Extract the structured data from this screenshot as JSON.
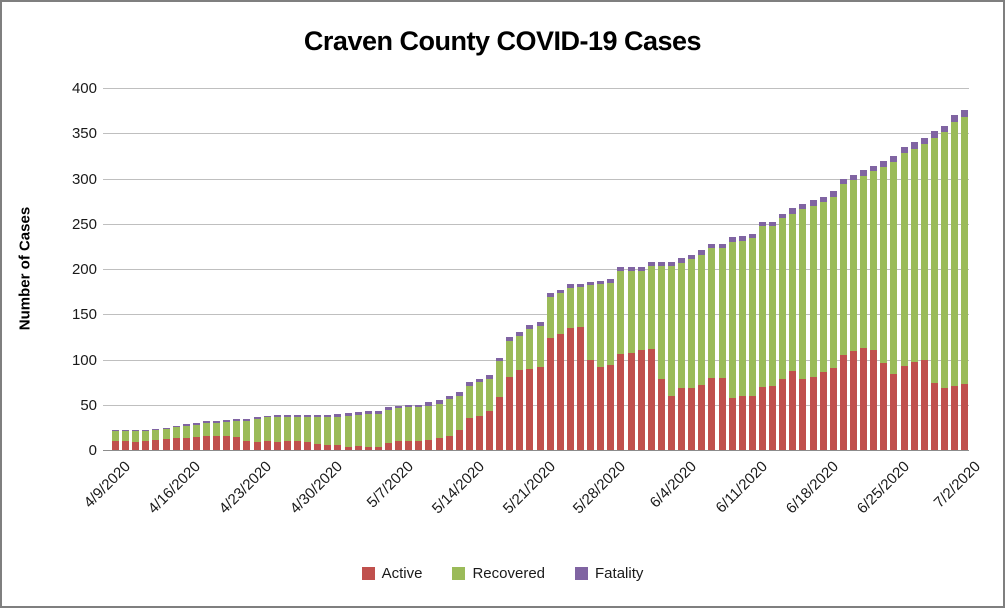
{
  "title": "Craven County COVID-19 Cases",
  "y_axis": {
    "label": "Number of Cases",
    "ticks": [
      0,
      50,
      100,
      150,
      200,
      250,
      300,
      350,
      400
    ],
    "min": 0,
    "max": 400
  },
  "x_axis": {
    "tick_labels": [
      "4/9/2020",
      "4/16/2020",
      "4/23/2020",
      "4/30/2020",
      "5/7/2020",
      "5/14/2020",
      "5/21/2020",
      "5/28/2020",
      "6/4/2020",
      "6/11/2020",
      "6/18/2020",
      "6/25/2020",
      "7/2/2020"
    ],
    "tick_every_n_bars": 7
  },
  "legend": {
    "items": [
      {
        "label": "Active",
        "color": "#c0504d"
      },
      {
        "label": "Recovered",
        "color": "#9bbb59"
      },
      {
        "label": "Fatality",
        "color": "#8064a2"
      }
    ],
    "position": "bottom"
  },
  "colors": {
    "active": "#c0504d",
    "recovered": "#9bbb59",
    "fatality": "#8064a2",
    "gridline": "#bfbfbf",
    "axis_line": "#8c8c8c",
    "text": "#1a1a1a",
    "frame_border": "#7f7f7f"
  },
  "chart_data": {
    "type": "bar",
    "stacked": true,
    "title": "Craven County COVID-19 Cases",
    "xlabel": "",
    "ylabel": "Number of Cases",
    "ylim": [
      0,
      400
    ],
    "grid": true,
    "legend_position": "bottom",
    "x": [
      "4/9/2020",
      "4/10/2020",
      "4/11/2020",
      "4/12/2020",
      "4/13/2020",
      "4/14/2020",
      "4/15/2020",
      "4/16/2020",
      "4/17/2020",
      "4/18/2020",
      "4/19/2020",
      "4/20/2020",
      "4/21/2020",
      "4/22/2020",
      "4/23/2020",
      "4/24/2020",
      "4/25/2020",
      "4/26/2020",
      "4/27/2020",
      "4/28/2020",
      "4/29/2020",
      "4/30/2020",
      "5/1/2020",
      "5/2/2020",
      "5/3/2020",
      "5/4/2020",
      "5/5/2020",
      "5/6/2020",
      "5/7/2020",
      "5/8/2020",
      "5/9/2020",
      "5/10/2020",
      "5/11/2020",
      "5/12/2020",
      "5/13/2020",
      "5/14/2020",
      "5/15/2020",
      "5/16/2020",
      "5/17/2020",
      "5/18/2020",
      "5/19/2020",
      "5/20/2020",
      "5/21/2020",
      "5/22/2020",
      "5/23/2020",
      "5/24/2020",
      "5/25/2020",
      "5/26/2020",
      "5/27/2020",
      "5/28/2020",
      "5/29/2020",
      "5/30/2020",
      "5/31/2020",
      "6/1/2020",
      "6/2/2020",
      "6/3/2020",
      "6/4/2020",
      "6/5/2020",
      "6/6/2020",
      "6/7/2020",
      "6/8/2020",
      "6/9/2020",
      "6/10/2020",
      "6/11/2020",
      "6/12/2020",
      "6/13/2020",
      "6/14/2020",
      "6/15/2020",
      "6/16/2020",
      "6/17/2020",
      "6/18/2020",
      "6/19/2020",
      "6/20/2020",
      "6/21/2020",
      "6/22/2020",
      "6/23/2020",
      "6/24/2020",
      "6/25/2020",
      "6/26/2020",
      "6/27/2020",
      "6/28/2020",
      "6/29/2020",
      "6/30/2020",
      "7/1/2020",
      "7/2/2020"
    ],
    "series": [
      {
        "name": "Active",
        "color": "#c0504d",
        "values": [
          10,
          10,
          9,
          10,
          11,
          12,
          13,
          13,
          14,
          15,
          15,
          15,
          14,
          10,
          9,
          10,
          9,
          10,
          10,
          9,
          7,
          6,
          5,
          3,
          4,
          3,
          3,
          8,
          10,
          10,
          10,
          11,
          13,
          16,
          22,
          35,
          38,
          43,
          59,
          81,
          88,
          90,
          92,
          124,
          128,
          135,
          136,
          99,
          92,
          94,
          106,
          107,
          110,
          112,
          79,
          60,
          68,
          69,
          72,
          80,
          80,
          58,
          60,
          60,
          70,
          71,
          79,
          87,
          79,
          81,
          86,
          91,
          105,
          109,
          113,
          110,
          96,
          84,
          93,
          97,
          100,
          74,
          68,
          71,
          73
        ]
      },
      {
        "name": "Recovered",
        "color": "#9bbb59",
        "values": [
          11,
          11,
          12,
          11,
          11,
          11,
          13,
          14,
          14,
          15,
          15,
          16,
          18,
          22,
          25,
          26,
          27,
          26,
          26,
          27,
          29,
          30,
          32,
          35,
          35,
          37,
          37,
          36,
          36,
          37,
          37,
          38,
          38,
          40,
          38,
          36,
          37,
          36,
          39,
          40,
          38,
          44,
          45,
          45,
          45,
          44,
          44,
          83,
          91,
          91,
          92,
          91,
          88,
          91,
          124,
          143,
          139,
          142,
          144,
          143,
          143,
          172,
          171,
          174,
          177,
          176,
          177,
          174,
          187,
          189,
          188,
          189,
          189,
          189,
          190,
          198,
          217,
          234,
          235,
          236,
          238,
          271,
          283,
          291,
          295
        ]
      },
      {
        "name": "Fatality",
        "color": "#8064a2",
        "values": [
          1,
          1,
          1,
          1,
          1,
          1,
          1,
          2,
          2,
          2,
          2,
          2,
          2,
          2,
          2,
          2,
          3,
          3,
          3,
          3,
          3,
          3,
          3,
          3,
          3,
          3,
          3,
          3,
          3,
          3,
          3,
          4,
          4,
          4,
          4,
          4,
          4,
          4,
          4,
          4,
          4,
          4,
          4,
          4,
          4,
          4,
          4,
          4,
          4,
          4,
          4,
          4,
          4,
          5,
          5,
          5,
          5,
          5,
          5,
          5,
          5,
          5,
          5,
          5,
          5,
          5,
          5,
          6,
          6,
          6,
          6,
          6,
          6,
          6,
          6,
          6,
          6,
          7,
          7,
          7,
          7,
          7,
          7,
          8,
          8
        ]
      }
    ]
  }
}
